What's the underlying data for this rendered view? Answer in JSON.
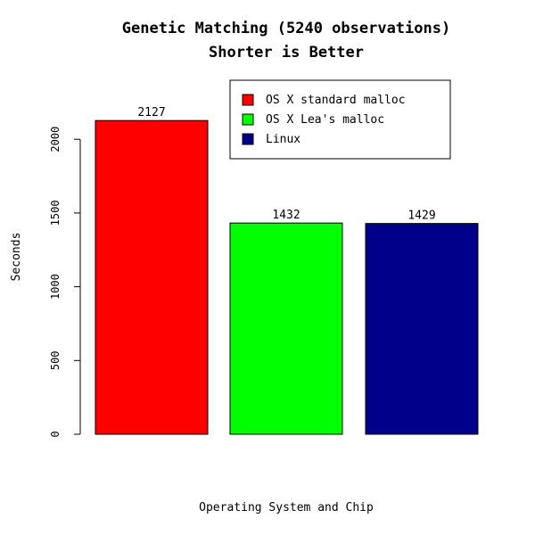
{
  "chart_data": {
    "type": "bar",
    "title": "Genetic Matching (5240 observations)",
    "subtitle": "Shorter is Better",
    "xlabel": "Operating System and Chip",
    "ylabel": "Seconds",
    "categories": [
      "OS X standard malloc",
      "OS X Lea's malloc",
      "Linux"
    ],
    "values": [
      2127,
      1432,
      1429
    ],
    "data_labels": [
      "2127",
      "1432",
      "1429"
    ],
    "colors": [
      "#ff0000",
      "#00ff00",
      "#00008b"
    ],
    "ylim": [
      0,
      2127
    ],
    "y_ticks": [
      0,
      500,
      1000,
      1500,
      2000
    ],
    "y_tick_labels": [
      "0",
      "500",
      "1000",
      "1500",
      "2000"
    ],
    "grid": false,
    "legend": {
      "placement": "top-right",
      "entries": [
        "OS X standard malloc",
        "OS X Lea's malloc",
        "Linux"
      ]
    }
  }
}
